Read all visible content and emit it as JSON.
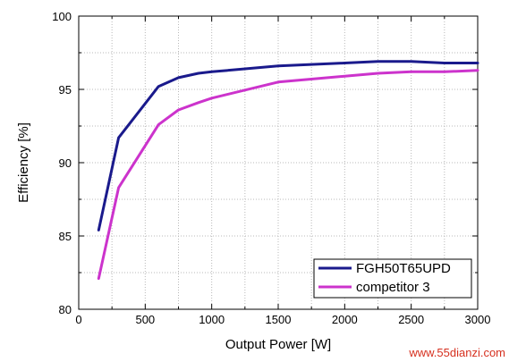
{
  "chart_data": {
    "type": "line",
    "xlabel": "Output Power [W]",
    "ylabel": "Efficiency [%]",
    "xlim": [
      0,
      3000
    ],
    "ylim": [
      80,
      100
    ],
    "xticks": [
      0,
      500,
      1000,
      1500,
      2000,
      2500,
      3000
    ],
    "yticks": [
      80,
      85,
      90,
      95,
      100
    ],
    "grid": true,
    "legend_position": "bottom-right",
    "series": [
      {
        "name": "FGH50T65UPD",
        "color": "#1a1a8c",
        "x": [
          150,
          300,
          600,
          750,
          900,
          1000,
          1500,
          2000,
          2250,
          2500,
          2750,
          3000
        ],
        "y": [
          85.4,
          91.7,
          95.2,
          95.8,
          96.1,
          96.2,
          96.6,
          96.8,
          96.9,
          96.9,
          96.8,
          96.8
        ]
      },
      {
        "name": "competitor 3",
        "color": "#cc33cc",
        "x": [
          150,
          300,
          600,
          750,
          900,
          1000,
          1500,
          2000,
          2250,
          2500,
          2750,
          3000
        ],
        "y": [
          82.1,
          88.3,
          92.6,
          93.6,
          94.1,
          94.4,
          95.5,
          95.9,
          96.1,
          96.2,
          96.2,
          96.3
        ]
      }
    ]
  },
  "watermark": "www.55dianzi.com"
}
